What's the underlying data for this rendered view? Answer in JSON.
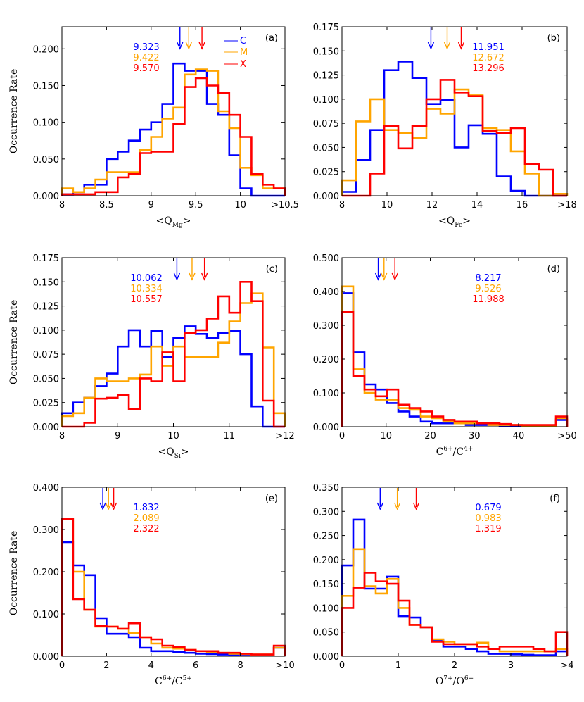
{
  "figure": {
    "ylabel": "Occurrence Rate",
    "legend": [
      {
        "name": "C",
        "color": "#0000ff"
      },
      {
        "name": "M",
        "color": "#ffa500"
      },
      {
        "name": "X",
        "color": "#ff0000"
      }
    ]
  },
  "chart_data": [
    {
      "type": "histogram-step",
      "label": "(a)",
      "xlabel_main": "<Q",
      "xlabel_sub": "Mg",
      "xlabel_end": ">",
      "xlim": [
        8,
        10.5
      ],
      "ylim": [
        0,
        0.23
      ],
      "xticks": [
        {
          "v": 8,
          "t": "8"
        },
        {
          "v": 8.5,
          "t": "8.5"
        },
        {
          "v": 9,
          "t": "9"
        },
        {
          "v": 9.5,
          "t": "9.5"
        },
        {
          "v": 10,
          "t": "10"
        },
        {
          "v": 10.5,
          "t": ">10.5"
        }
      ],
      "yticks": [
        {
          "v": 0,
          "t": "0.000"
        },
        {
          "v": 0.05,
          "t": "0.050"
        },
        {
          "v": 0.1,
          "t": "0.100"
        },
        {
          "v": 0.15,
          "t": "0.150"
        },
        {
          "v": 0.2,
          "t": "0.200"
        }
      ],
      "edges": [
        8.0,
        8.125,
        8.25,
        8.375,
        8.5,
        8.625,
        8.75,
        8.875,
        9.0,
        9.125,
        9.25,
        9.375,
        9.5,
        9.625,
        9.75,
        9.875,
        10.0,
        10.125,
        10.25,
        10.375,
        10.5
      ],
      "series": [
        {
          "name": "C",
          "color": "#0000ff",
          "mean": "9.323",
          "mean_value": 9.323,
          "values": [
            0.002,
            0.005,
            0.015,
            0.015,
            0.05,
            0.06,
            0.075,
            0.09,
            0.1,
            0.125,
            0.18,
            0.17,
            0.17,
            0.125,
            0.11,
            0.055,
            0.01,
            0.0,
            0.0,
            0.0
          ]
        },
        {
          "name": "M",
          "color": "#ffa500",
          "mean": "9.422",
          "mean_value": 9.422,
          "values": [
            0.01,
            0.005,
            0.01,
            0.022,
            0.032,
            0.032,
            0.032,
            0.062,
            0.08,
            0.105,
            0.12,
            0.165,
            0.172,
            0.17,
            0.115,
            0.092,
            0.038,
            0.028,
            0.01,
            0.01
          ]
        },
        {
          "name": "X",
          "color": "#ff0000",
          "mean": "9.570",
          "mean_value": 9.57,
          "values": [
            0.002,
            0.002,
            0.002,
            0.005,
            0.005,
            0.025,
            0.03,
            0.058,
            0.06,
            0.06,
            0.098,
            0.148,
            0.16,
            0.15,
            0.14,
            0.11,
            0.08,
            0.03,
            0.015,
            0.01
          ]
        }
      ]
    },
    {
      "type": "histogram-step",
      "label": "(b)",
      "xlabel_main": "<Q",
      "xlabel_sub": "Fe",
      "xlabel_end": ">",
      "xlim": [
        8,
        18
      ],
      "ylim": [
        0,
        0.175
      ],
      "xticks": [
        {
          "v": 8,
          "t": "8"
        },
        {
          "v": 10,
          "t": "10"
        },
        {
          "v": 12,
          "t": "12"
        },
        {
          "v": 14,
          "t": "14"
        },
        {
          "v": 16,
          "t": "16"
        },
        {
          "v": 18,
          "t": ">18"
        }
      ],
      "yticks": [
        {
          "v": 0,
          "t": "0.000"
        },
        {
          "v": 0.025,
          "t": "0.025"
        },
        {
          "v": 0.05,
          "t": "0.050"
        },
        {
          "v": 0.075,
          "t": "0.075"
        },
        {
          "v": 0.1,
          "t": "0.100"
        },
        {
          "v": 0.125,
          "t": "0.125"
        },
        {
          "v": 0.15,
          "t": "0.150"
        },
        {
          "v": 0.175,
          "t": "0.175"
        }
      ],
      "edges": [
        8.0,
        8.625,
        9.25,
        9.875,
        10.5,
        11.125,
        11.75,
        12.375,
        13.0,
        13.625,
        14.25,
        14.875,
        15.5,
        16.125,
        16.75,
        17.375,
        18.0
      ],
      "series": [
        {
          "name": "C",
          "color": "#0000ff",
          "mean": "11.951",
          "mean_value": 11.951,
          "values": [
            0.004,
            0.037,
            0.068,
            0.13,
            0.139,
            0.122,
            0.095,
            0.099,
            0.05,
            0.073,
            0.064,
            0.02,
            0.005,
            0.0,
            0.0,
            0.0
          ]
        },
        {
          "name": "M",
          "color": "#ffa500",
          "mean": "12.672",
          "mean_value": 12.672,
          "values": [
            0.016,
            0.077,
            0.1,
            0.068,
            0.065,
            0.06,
            0.09,
            0.085,
            0.11,
            0.104,
            0.07,
            0.068,
            0.046,
            0.023,
            0.0,
            0.002
          ]
        },
        {
          "name": "X",
          "color": "#ff0000",
          "mean": "13.296",
          "mean_value": 13.296,
          "values": [
            0.0,
            0.0,
            0.023,
            0.072,
            0.049,
            0.072,
            0.1,
            0.12,
            0.107,
            0.103,
            0.067,
            0.065,
            0.07,
            0.033,
            0.027,
            0.0
          ]
        }
      ]
    },
    {
      "type": "histogram-step",
      "label": "(c)",
      "xlabel_main": "<Q",
      "xlabel_sub": "Si",
      "xlabel_end": ">",
      "xlim": [
        8,
        12
      ],
      "ylim": [
        0,
        0.175
      ],
      "xticks": [
        {
          "v": 8,
          "t": "8"
        },
        {
          "v": 9,
          "t": "9"
        },
        {
          "v": 10,
          "t": "10"
        },
        {
          "v": 11,
          "t": "11"
        },
        {
          "v": 12,
          "t": ">12"
        }
      ],
      "yticks": [
        {
          "v": 0,
          "t": "0.000"
        },
        {
          "v": 0.025,
          "t": "0.025"
        },
        {
          "v": 0.05,
          "t": "0.050"
        },
        {
          "v": 0.075,
          "t": "0.075"
        },
        {
          "v": 0.1,
          "t": "0.100"
        },
        {
          "v": 0.125,
          "t": "0.125"
        },
        {
          "v": 0.15,
          "t": "0.150"
        },
        {
          "v": 0.175,
          "t": "0.175"
        }
      ],
      "edges": [
        8.0,
        8.2,
        8.4,
        8.6,
        8.8,
        9.0,
        9.2,
        9.4,
        9.6,
        9.8,
        10.0,
        10.2,
        10.4,
        10.6,
        10.8,
        11.0,
        11.2,
        11.4,
        11.6,
        11.8,
        12.0
      ],
      "series": [
        {
          "name": "C",
          "color": "#0000ff",
          "mean": "10.062",
          "mean_value": 10.062,
          "values": [
            0.014,
            0.025,
            0.03,
            0.042,
            0.055,
            0.083,
            0.1,
            0.083,
            0.099,
            0.072,
            0.092,
            0.104,
            0.096,
            0.092,
            0.097,
            0.099,
            0.075,
            0.021,
            0.0,
            0.0
          ]
        },
        {
          "name": "M",
          "color": "#ffa500",
          "mean": "10.334",
          "mean_value": 10.334,
          "values": [
            0.011,
            0.014,
            0.03,
            0.05,
            0.047,
            0.047,
            0.05,
            0.054,
            0.083,
            0.063,
            0.083,
            0.072,
            0.072,
            0.072,
            0.087,
            0.109,
            0.128,
            0.138,
            0.082,
            0.014
          ]
        },
        {
          "name": "X",
          "color": "#ff0000",
          "mean": "10.557",
          "mean_value": 10.557,
          "values": [
            0.0,
            0.0,
            0.004,
            0.029,
            0.03,
            0.033,
            0.018,
            0.05,
            0.047,
            0.077,
            0.047,
            0.097,
            0.1,
            0.112,
            0.135,
            0.118,
            0.15,
            0.13,
            0.027,
            0.0
          ]
        }
      ]
    },
    {
      "type": "histogram-step",
      "label": "(d)",
      "xlabel_main": "C",
      "xlabel_sup1": "6+",
      "xlabel_mid": "/C",
      "xlabel_sup2": "4+",
      "xlim": [
        0,
        51
      ],
      "ylim": [
        0,
        0.5
      ],
      "xticks": [
        {
          "v": 0,
          "t": "0"
        },
        {
          "v": 10,
          "t": "10"
        },
        {
          "v": 20,
          "t": "20"
        },
        {
          "v": 30,
          "t": "30"
        },
        {
          "v": 40,
          "t": "40"
        },
        {
          "v": 51,
          "t": ">50"
        }
      ],
      "yticks": [
        {
          "v": 0,
          "t": "0.000"
        },
        {
          "v": 0.1,
          "t": "0.100"
        },
        {
          "v": 0.2,
          "t": "0.200"
        },
        {
          "v": 0.3,
          "t": "0.300"
        },
        {
          "v": 0.4,
          "t": "0.400"
        },
        {
          "v": 0.5,
          "t": "0.500"
        }
      ],
      "edges": [
        0.0,
        2.55,
        5.1,
        7.65,
        10.2,
        12.75,
        15.3,
        17.85,
        20.4,
        22.95,
        25.5,
        28.05,
        30.6,
        33.15,
        35.7,
        38.25,
        40.8,
        43.35,
        45.9,
        48.45,
        51.0
      ],
      "series": [
        {
          "name": "C",
          "color": "#0000ff",
          "mean": "8.217",
          "mean_value": 8.217,
          "values": [
            0.395,
            0.22,
            0.125,
            0.11,
            0.07,
            0.045,
            0.03,
            0.015,
            0.01,
            0.01,
            0.01,
            0.005,
            0.005,
            0.005,
            0.003,
            0.003,
            0.002,
            0.002,
            0.002,
            0.02
          ]
        },
        {
          "name": "M",
          "color": "#ffa500",
          "mean": "9.526",
          "mean_value": 9.526,
          "values": [
            0.415,
            0.17,
            0.1,
            0.08,
            0.08,
            0.055,
            0.05,
            0.03,
            0.025,
            0.015,
            0.01,
            0.01,
            0.01,
            0.005,
            0.005,
            0.005,
            0.003,
            0.003,
            0.003,
            0.025
          ]
        },
        {
          "name": "X",
          "color": "#ff0000",
          "mean": "11.988",
          "mean_value": 11.988,
          "values": [
            0.34,
            0.15,
            0.11,
            0.09,
            0.11,
            0.065,
            0.055,
            0.045,
            0.03,
            0.02,
            0.015,
            0.015,
            0.01,
            0.01,
            0.008,
            0.005,
            0.005,
            0.005,
            0.005,
            0.03
          ]
        }
      ]
    },
    {
      "type": "histogram-step",
      "label": "(e)",
      "xlabel_main": "C",
      "xlabel_sup1": "6+",
      "xlabel_mid": "/C",
      "xlabel_sup2": "5+",
      "xlim": [
        0,
        10
      ],
      "ylim": [
        0,
        0.4
      ],
      "xticks": [
        {
          "v": 0,
          "t": "0"
        },
        {
          "v": 2,
          "t": "2"
        },
        {
          "v": 4,
          "t": "4"
        },
        {
          "v": 6,
          "t": "6"
        },
        {
          "v": 8,
          "t": "8"
        },
        {
          "v": 10,
          "t": ">10"
        }
      ],
      "yticks": [
        {
          "v": 0,
          "t": "0.000"
        },
        {
          "v": 0.1,
          "t": "0.100"
        },
        {
          "v": 0.2,
          "t": "0.200"
        },
        {
          "v": 0.3,
          "t": "0.300"
        },
        {
          "v": 0.4,
          "t": "0.400"
        }
      ],
      "edges": [
        0.0,
        0.5,
        1.0,
        1.5,
        2.0,
        2.5,
        3.0,
        3.5,
        4.0,
        4.5,
        5.0,
        5.5,
        6.0,
        6.5,
        7.0,
        7.5,
        8.0,
        8.5,
        9.0,
        9.5,
        10.0
      ],
      "series": [
        {
          "name": "C",
          "color": "#0000ff",
          "mean": "1.832",
          "mean_value": 1.832,
          "values": [
            0.27,
            0.215,
            0.192,
            0.09,
            0.053,
            0.053,
            0.045,
            0.02,
            0.012,
            0.012,
            0.01,
            0.008,
            0.006,
            0.005,
            0.004,
            0.003,
            0.002,
            0.002,
            0.002,
            0.02
          ]
        },
        {
          "name": "M",
          "color": "#ffa500",
          "mean": "2.089",
          "mean_value": 2.089,
          "values": [
            0.325,
            0.2,
            0.11,
            0.07,
            0.07,
            0.065,
            0.055,
            0.045,
            0.03,
            0.02,
            0.018,
            0.015,
            0.012,
            0.01,
            0.008,
            0.006,
            0.005,
            0.004,
            0.004,
            0.02
          ]
        },
        {
          "name": "X",
          "color": "#ff0000",
          "mean": "2.322",
          "mean_value": 2.322,
          "values": [
            0.325,
            0.135,
            0.11,
            0.072,
            0.07,
            0.065,
            0.078,
            0.045,
            0.04,
            0.025,
            0.022,
            0.015,
            0.012,
            0.012,
            0.008,
            0.008,
            0.006,
            0.004,
            0.004,
            0.025
          ]
        }
      ]
    },
    {
      "type": "histogram-step",
      "label": "(f)",
      "xlabel_main": "O",
      "xlabel_sup1": "7+",
      "xlabel_mid": "/O",
      "xlabel_sup2": "6+",
      "xlim": [
        0,
        4
      ],
      "ylim": [
        0,
        0.35
      ],
      "xticks": [
        {
          "v": 0,
          "t": "0"
        },
        {
          "v": 1,
          "t": "1"
        },
        {
          "v": 2,
          "t": "2"
        },
        {
          "v": 3,
          "t": "3"
        },
        {
          "v": 4,
          "t": ">4"
        }
      ],
      "yticks": [
        {
          "v": 0,
          "t": "0.000"
        },
        {
          "v": 0.05,
          "t": "0.050"
        },
        {
          "v": 0.1,
          "t": "0.100"
        },
        {
          "v": 0.15,
          "t": "0.150"
        },
        {
          "v": 0.2,
          "t": "0.200"
        },
        {
          "v": 0.25,
          "t": "0.250"
        },
        {
          "v": 0.3,
          "t": "0.300"
        },
        {
          "v": 0.35,
          "t": "0.350"
        }
      ],
      "edges": [
        0.0,
        0.2,
        0.4,
        0.6,
        0.8,
        1.0,
        1.2,
        1.4,
        1.6,
        1.8,
        2.0,
        2.2,
        2.4,
        2.6,
        2.8,
        3.0,
        3.2,
        3.4,
        3.6,
        3.8,
        4.0
      ],
      "series": [
        {
          "name": "C",
          "color": "#0000ff",
          "mean": "0.679",
          "mean_value": 0.679,
          "values": [
            0.188,
            0.283,
            0.14,
            0.14,
            0.165,
            0.083,
            0.08,
            0.06,
            0.033,
            0.02,
            0.02,
            0.015,
            0.01,
            0.005,
            0.005,
            0.004,
            0.003,
            0.002,
            0.002,
            0.01
          ]
        },
        {
          "name": "M",
          "color": "#ffa500",
          "mean": "0.983",
          "mean_value": 0.983,
          "values": [
            0.125,
            0.222,
            0.145,
            0.13,
            0.16,
            0.1,
            0.065,
            0.06,
            0.035,
            0.03,
            0.025,
            0.025,
            0.028,
            0.015,
            0.01,
            0.01,
            0.01,
            0.01,
            0.01,
            0.015
          ]
        },
        {
          "name": "X",
          "color": "#ff0000",
          "mean": "1.319",
          "mean_value": 1.319,
          "values": [
            0.1,
            0.142,
            0.173,
            0.155,
            0.15,
            0.115,
            0.065,
            0.06,
            0.03,
            0.025,
            0.025,
            0.025,
            0.02,
            0.015,
            0.02,
            0.02,
            0.02,
            0.015,
            0.01,
            0.05
          ]
        }
      ]
    }
  ]
}
